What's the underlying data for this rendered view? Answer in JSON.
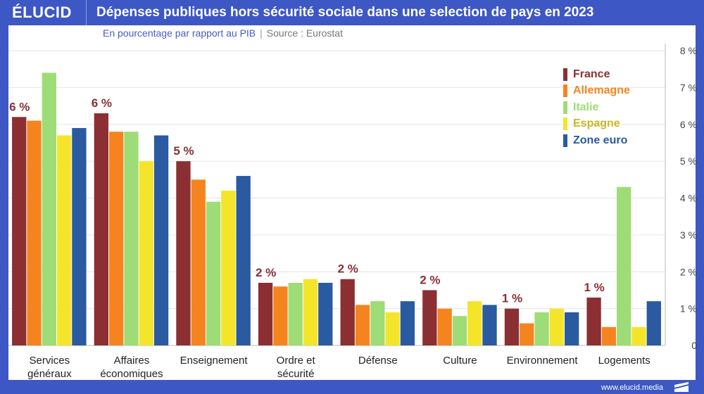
{
  "header": {
    "logo": "ÉLUCID",
    "title": "Dépenses publiques hors sécurité sociale dans une selection de pays en 2023"
  },
  "subtitle": {
    "left": "En pourcentage par rapport au PIB",
    "separator": "|",
    "source": "Source : Eurostat"
  },
  "footer": {
    "url": "www.elucid.media"
  },
  "colors": {
    "frame": "#3d57c4",
    "France": "#8b2f33",
    "Allemagne": "#f5841f",
    "Italie": "#9edc77",
    "Espagne": "#f4e52a",
    "Zone euro": "#2a5aa0",
    "label": "#8b2f33"
  },
  "chart_data": {
    "type": "bar",
    "title": "Dépenses publiques hors sécurité sociale dans une selection de pays en 2023",
    "ylabel": "",
    "ylim": [
      0,
      8
    ],
    "yticks": [
      "0",
      "1 %",
      "2 %",
      "3 %",
      "4 %",
      "5 %",
      "6 %",
      "7 %",
      "8 %"
    ],
    "y_axis_position": "right",
    "grid": true,
    "legend_placement": "top-right",
    "categories": [
      [
        "Services",
        "généraux"
      ],
      [
        "Affaires",
        "économiques"
      ],
      [
        "Enseignement"
      ],
      [
        "Ordre et",
        "sécurité"
      ],
      [
        "Défense"
      ],
      [
        "Culture"
      ],
      [
        "Environnement"
      ],
      [
        "Logements"
      ]
    ],
    "annotations": [
      "6 %",
      "6 %",
      "5 %",
      "2 %",
      "2 %",
      "2 %",
      "1 %",
      "1 %"
    ],
    "series": [
      {
        "name": "France",
        "color": "#8b2f33",
        "values": [
          6.2,
          6.3,
          5.0,
          1.7,
          1.8,
          1.5,
          1.0,
          1.3
        ]
      },
      {
        "name": "Allemagne",
        "color": "#f5841f",
        "values": [
          6.1,
          5.8,
          4.5,
          1.6,
          1.1,
          1.0,
          0.6,
          0.5
        ]
      },
      {
        "name": "Italie",
        "color": "#9edc77",
        "values": [
          7.4,
          5.8,
          3.9,
          1.7,
          1.2,
          0.8,
          0.9,
          4.3
        ]
      },
      {
        "name": "Espagne",
        "color": "#f4e52a",
        "values": [
          5.7,
          5.0,
          4.2,
          1.8,
          0.9,
          1.2,
          1.0,
          0.5
        ]
      },
      {
        "name": "Zone euro",
        "color": "#2a5aa0",
        "values": [
          5.9,
          5.7,
          4.6,
          1.7,
          1.2,
          1.1,
          0.9,
          1.2
        ]
      }
    ],
    "legend_text_colors": [
      "#8b2f33",
      "#f5841f",
      "#9edc77",
      "#c9b820",
      "#2a5aa0"
    ]
  }
}
